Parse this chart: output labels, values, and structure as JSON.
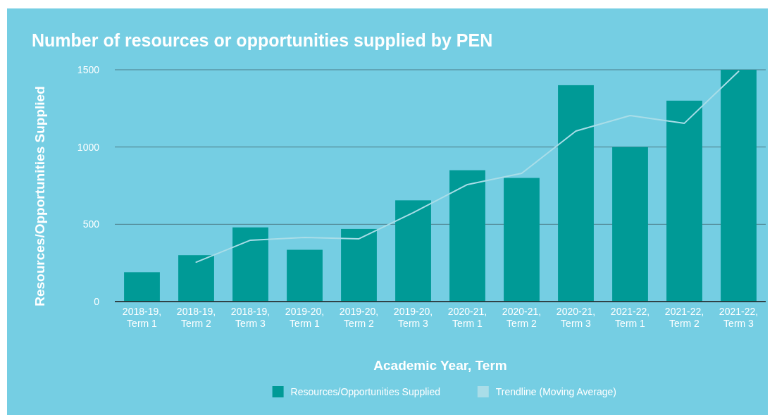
{
  "chart_data": {
    "type": "bar",
    "title": "Number of resources or opportunities supplied by PEN",
    "xlabel": "Academic Year, Term",
    "ylabel": "Resources/Opportunities Supplied",
    "categories": [
      "2018-19, Term 1",
      "2018-19, Term 2",
      "2018-19, Term 3",
      "2019-20, Term 1",
      "2019-20, Term 2",
      "2019-20, Term 3",
      "2020-21, Term 1",
      "2020-21, Term 2",
      "2020-21, Term 3",
      "2021-22, Term 1",
      "2021-22, Term 2",
      "2021-22, Term 3"
    ],
    "series": [
      {
        "name": "Resources/Opportunities Supplied",
        "color": "#009a96",
        "values": [
          190,
          300,
          480,
          335,
          470,
          655,
          850,
          800,
          1400,
          1000,
          1300,
          1500
        ]
      },
      {
        "name": "Trendline (Moving Average)",
        "type": "line",
        "color": "#a9dde8",
        "values": [
          null,
          255,
          397,
          415,
          406,
          575,
          757,
          830,
          1103,
          1204,
          1154,
          1490
        ]
      }
    ],
    "ylim": [
      0,
      1500
    ],
    "yticks": [
      0,
      500,
      1000,
      1500
    ],
    "grid": "y",
    "legend": "bottom"
  }
}
